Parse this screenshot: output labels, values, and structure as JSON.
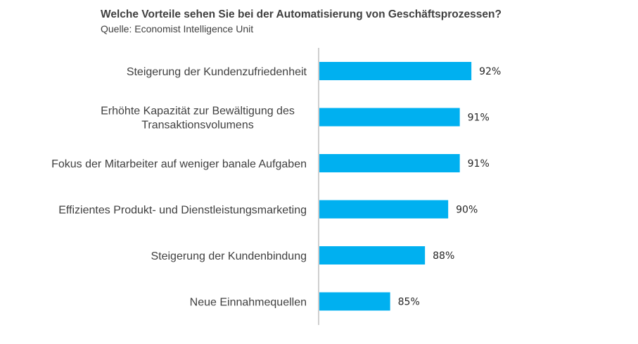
{
  "title": "Welche Vorteile sehen Sie bei der Automatisierung von Geschäftsprozessen?",
  "subtitle": "Quelle: Economist Intelligence Unit",
  "chart_data": {
    "type": "bar",
    "orientation": "horizontal",
    "title": "Welche Vorteile sehen Sie bei der Automatisierung von Geschäftsprozessen?",
    "subtitle": "Quelle: Economist Intelligence Unit",
    "categories": [
      [
        "Steigerung der Kundenzufriedenheit"
      ],
      [
        "Erhöhte Kapazität zur Bewältigung des",
        "Transaktionsvolumens"
      ],
      [
        "Fokus der Mitarbeiter auf weniger banale Aufgaben"
      ],
      [
        "Effizientes Produkt- und Dienstleistungsmarketing"
      ],
      [
        "Steigerung der Kundenbindung"
      ],
      [
        "Neue Einnahmequellen"
      ]
    ],
    "values": [
      92,
      91,
      91,
      90,
      88,
      85
    ],
    "value_labels": [
      "92%",
      "91%",
      "91%",
      "90%",
      "88%",
      "85%"
    ],
    "unit": "%",
    "xlim": [
      78.9,
      100
    ],
    "bar_color": "#00B0F0",
    "axis_color": "#BFBFBF",
    "grid": false,
    "legend": "none"
  }
}
